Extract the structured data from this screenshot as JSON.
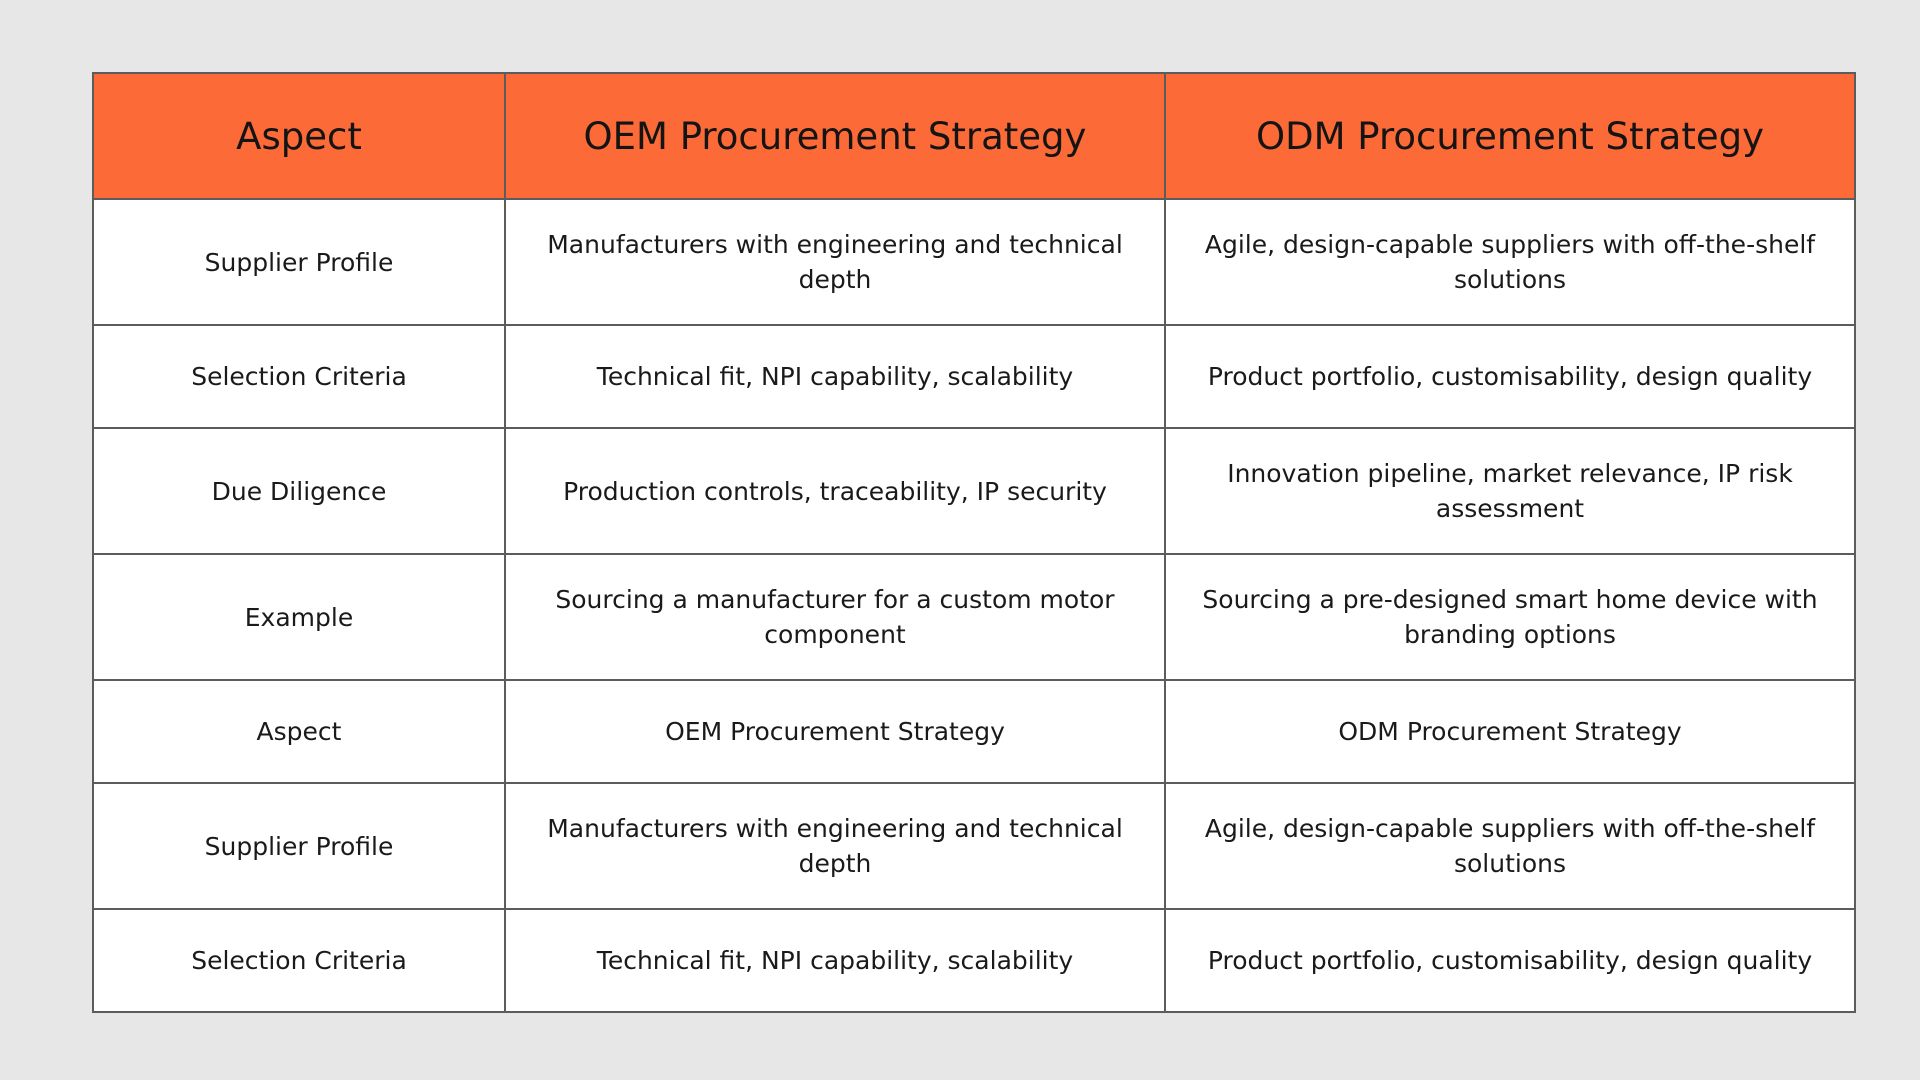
{
  "table": {
    "headers": [
      "Aspect",
      "OEM Procurement Strategy",
      "ODM Procurement Strategy"
    ],
    "rows": [
      {
        "aspect": "Supplier Profile",
        "oem": "Manufacturers with engineering and technical depth",
        "odm": "Agile, design-capable suppliers with off-the-shelf solutions"
      },
      {
        "aspect": "Selection Criteria",
        "oem": "Technical fit, NPI capability, scalability",
        "odm": "Product portfolio, customisability, design quality"
      },
      {
        "aspect": "Due Diligence",
        "oem": "Production controls, traceability, IP security",
        "odm": "Innovation pipeline, market relevance, IP risk assessment"
      },
      {
        "aspect": "Example",
        "oem": "Sourcing a manufacturer for a custom motor component",
        "odm": "Sourcing a pre-designed smart home device with branding options"
      },
      {
        "aspect": "Aspect",
        "oem": "OEM Procurement Strategy",
        "odm": "ODM Procurement Strategy"
      },
      {
        "aspect": "Supplier Profile",
        "oem": "Manufacturers with engineering and technical depth",
        "odm": "Agile, design-capable suppliers with off-the-shelf solutions"
      },
      {
        "aspect": "Selection Criteria",
        "oem": "Technical fit, NPI capability, scalability",
        "odm": "Product portfolio, customisability, design quality"
      }
    ]
  },
  "colors": {
    "header_background": "#fb6a37",
    "page_background": "#e6e7e6",
    "border": "#5c5c5c"
  }
}
